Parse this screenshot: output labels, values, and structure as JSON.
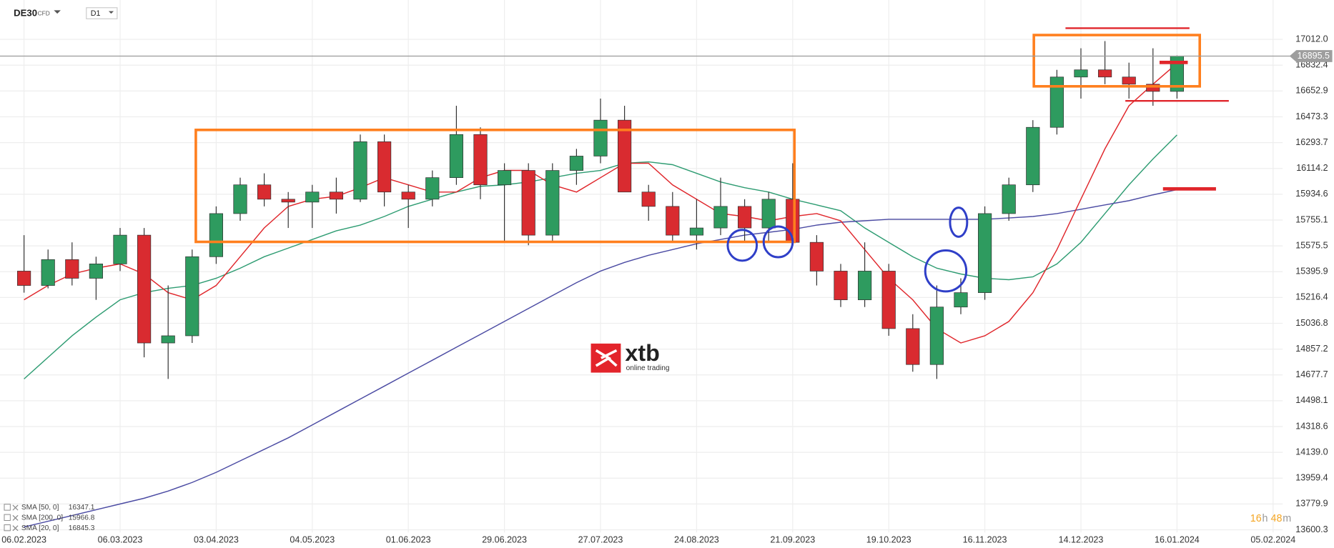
{
  "header": {
    "symbol": "DE30",
    "instrument": "CFD",
    "timeframe": "D1"
  },
  "logo": {
    "name": "xtb",
    "tagline": "online trading"
  },
  "countdown": [
    "16",
    "h",
    "48",
    "m"
  ],
  "chart_data": {
    "type": "candlestick",
    "x": [
      0,
      5,
      10,
      15,
      20,
      25,
      30,
      35,
      40,
      45,
      50,
      55,
      60,
      65,
      70,
      75,
      80,
      85,
      90,
      95,
      100,
      105,
      110,
      115,
      120,
      125,
      130,
      135,
      140,
      145,
      150,
      155,
      160,
      165,
      170,
      175,
      180,
      185,
      190,
      195,
      200,
      205,
      210,
      215,
      220,
      225,
      230,
      235,
      240
    ],
    "open": [
      15400,
      15300,
      15480,
      15350,
      15450,
      15650,
      14900,
      14950,
      15500,
      15800,
      16000,
      15900,
      15880,
      15950,
      15900,
      16300,
      15950,
      15900,
      16050,
      16350,
      16000,
      16100,
      15650,
      16100,
      16200,
      16450,
      15950,
      15850,
      15650,
      15700,
      15850,
      15700,
      15900,
      15600,
      15400,
      15200,
      15400,
      15000,
      14750,
      15150,
      15250,
      15800,
      16000,
      16400,
      16750,
      16800,
      16750,
      16700,
      16650
    ],
    "high": [
      15650,
      15550,
      15600,
      15500,
      15700,
      15700,
      15300,
      15550,
      15850,
      16050,
      16080,
      15950,
      16000,
      16050,
      16350,
      16350,
      16000,
      16100,
      16550,
      16400,
      16150,
      16150,
      16150,
      16250,
      16600,
      16550,
      16000,
      15950,
      15900,
      16050,
      15900,
      15950,
      16150,
      15650,
      15450,
      15600,
      15450,
      15100,
      15300,
      15350,
      15850,
      16050,
      16450,
      16800,
      16950,
      17000,
      16850,
      16950,
      16900
    ],
    "low": [
      15250,
      15280,
      15300,
      15200,
      15400,
      14800,
      14650,
      14900,
      15450,
      15750,
      15850,
      15700,
      15700,
      15800,
      15880,
      15850,
      15700,
      15850,
      16000,
      15900,
      15600,
      15580,
      15600,
      16000,
      16150,
      15950,
      15750,
      15600,
      15550,
      15650,
      15600,
      15600,
      15600,
      15300,
      15150,
      15150,
      14950,
      14700,
      14650,
      15100,
      15200,
      15750,
      15950,
      16350,
      16600,
      16700,
      16600,
      16550,
      16600
    ],
    "close": [
      15300,
      15480,
      15350,
      15450,
      15650,
      14900,
      14950,
      15500,
      15800,
      16000,
      15900,
      15880,
      15950,
      15900,
      16300,
      15950,
      15900,
      16050,
      16350,
      16000,
      16100,
      15650,
      16100,
      16200,
      16450,
      15950,
      15850,
      15650,
      15700,
      15850,
      15700,
      15900,
      15600,
      15400,
      15200,
      15400,
      15000,
      14750,
      15150,
      15250,
      15800,
      16000,
      16400,
      16750,
      16800,
      16750,
      16700,
      16650,
      16895.5
    ],
    "up_color": "#2e9b5f",
    "down_color": "#d92b30",
    "overlays": [
      {
        "name": "SMA [50, 0]",
        "color": "#2e9c72",
        "values": [
          14650,
          14800,
          14950,
          15080,
          15200,
          15250,
          15280,
          15300,
          15350,
          15420,
          15500,
          15560,
          15620,
          15680,
          15720,
          15780,
          15850,
          15900,
          15950,
          15990,
          16000,
          16020,
          16050,
          16080,
          16100,
          16150,
          16160,
          16140,
          16080,
          16020,
          15980,
          15950,
          15900,
          15860,
          15820,
          15700,
          15600,
          15500,
          15420,
          15380,
          15350,
          15340,
          15360,
          15450,
          15600,
          15800,
          16000,
          16180,
          16347.1
        ]
      },
      {
        "name": "SMA [200, 0]",
        "color": "#4b4ba3",
        "values": [
          13620,
          13660,
          13700,
          13740,
          13780,
          13820,
          13870,
          13930,
          14000,
          14080,
          14160,
          14240,
          14330,
          14420,
          14510,
          14600,
          14690,
          14780,
          14870,
          14960,
          15050,
          15140,
          15230,
          15320,
          15400,
          15460,
          15510,
          15550,
          15590,
          15620,
          15650,
          15670,
          15690,
          15720,
          15740,
          15750,
          15760,
          15760,
          15760,
          15760,
          15760,
          15770,
          15780,
          15800,
          15830,
          15860,
          15890,
          15930,
          15966.8
        ]
      },
      {
        "name": "SMA [20, 0]",
        "color": "#e0262b",
        "values": [
          15200,
          15300,
          15380,
          15420,
          15450,
          15380,
          15250,
          15200,
          15300,
          15500,
          15700,
          15850,
          15900,
          15920,
          15980,
          16050,
          16000,
          15950,
          15950,
          16050,
          16100,
          16100,
          16000,
          15950,
          16050,
          16150,
          16150,
          16000,
          15900,
          15800,
          15780,
          15750,
          15780,
          15800,
          15750,
          15550,
          15350,
          15200,
          15000,
          14900,
          14950,
          15050,
          15250,
          15550,
          15900,
          16250,
          16550,
          16700,
          16845.3
        ]
      }
    ],
    "current_price": 16895.5,
    "xlim": [
      -5,
      262
    ],
    "xticks": [
      {
        "value": 0,
        "label": "06.02.2023"
      },
      {
        "value": 20,
        "label": "06.03.2023"
      },
      {
        "value": 40,
        "label": "03.04.2023"
      },
      {
        "value": 60,
        "label": "04.05.2023"
      },
      {
        "value": 80,
        "label": "01.06.2023"
      },
      {
        "value": 100,
        "label": "29.06.2023"
      },
      {
        "value": 120,
        "label": "27.07.2023"
      },
      {
        "value": 140,
        "label": "24.08.2023"
      },
      {
        "value": 160,
        "label": "21.09.2023"
      },
      {
        "value": 180,
        "label": "19.10.2023"
      },
      {
        "value": 200,
        "label": "16.11.2023"
      },
      {
        "value": 220,
        "label": "14.12.2023"
      },
      {
        "value": 240,
        "label": "16.01.2024"
      },
      {
        "value": 260,
        "label": "05.02.2024"
      }
    ],
    "ylim": [
      13582,
      17256
    ],
    "yticks": [
      13600.3,
      13779.9,
      13959.4,
      {
        "value": 14139.0,
        "label": "14139.0"
      },
      14318.6,
      14498.1,
      14677.7,
      14857.2,
      15036.8,
      15216.4,
      15395.9,
      15575.5,
      15755.1,
      15934.6,
      16114.2,
      16293.7,
      16473.3,
      16652.9,
      16832.4,
      {
        "value": 17012.0,
        "label": "17012.0"
      }
    ],
    "grid": true
  }
}
